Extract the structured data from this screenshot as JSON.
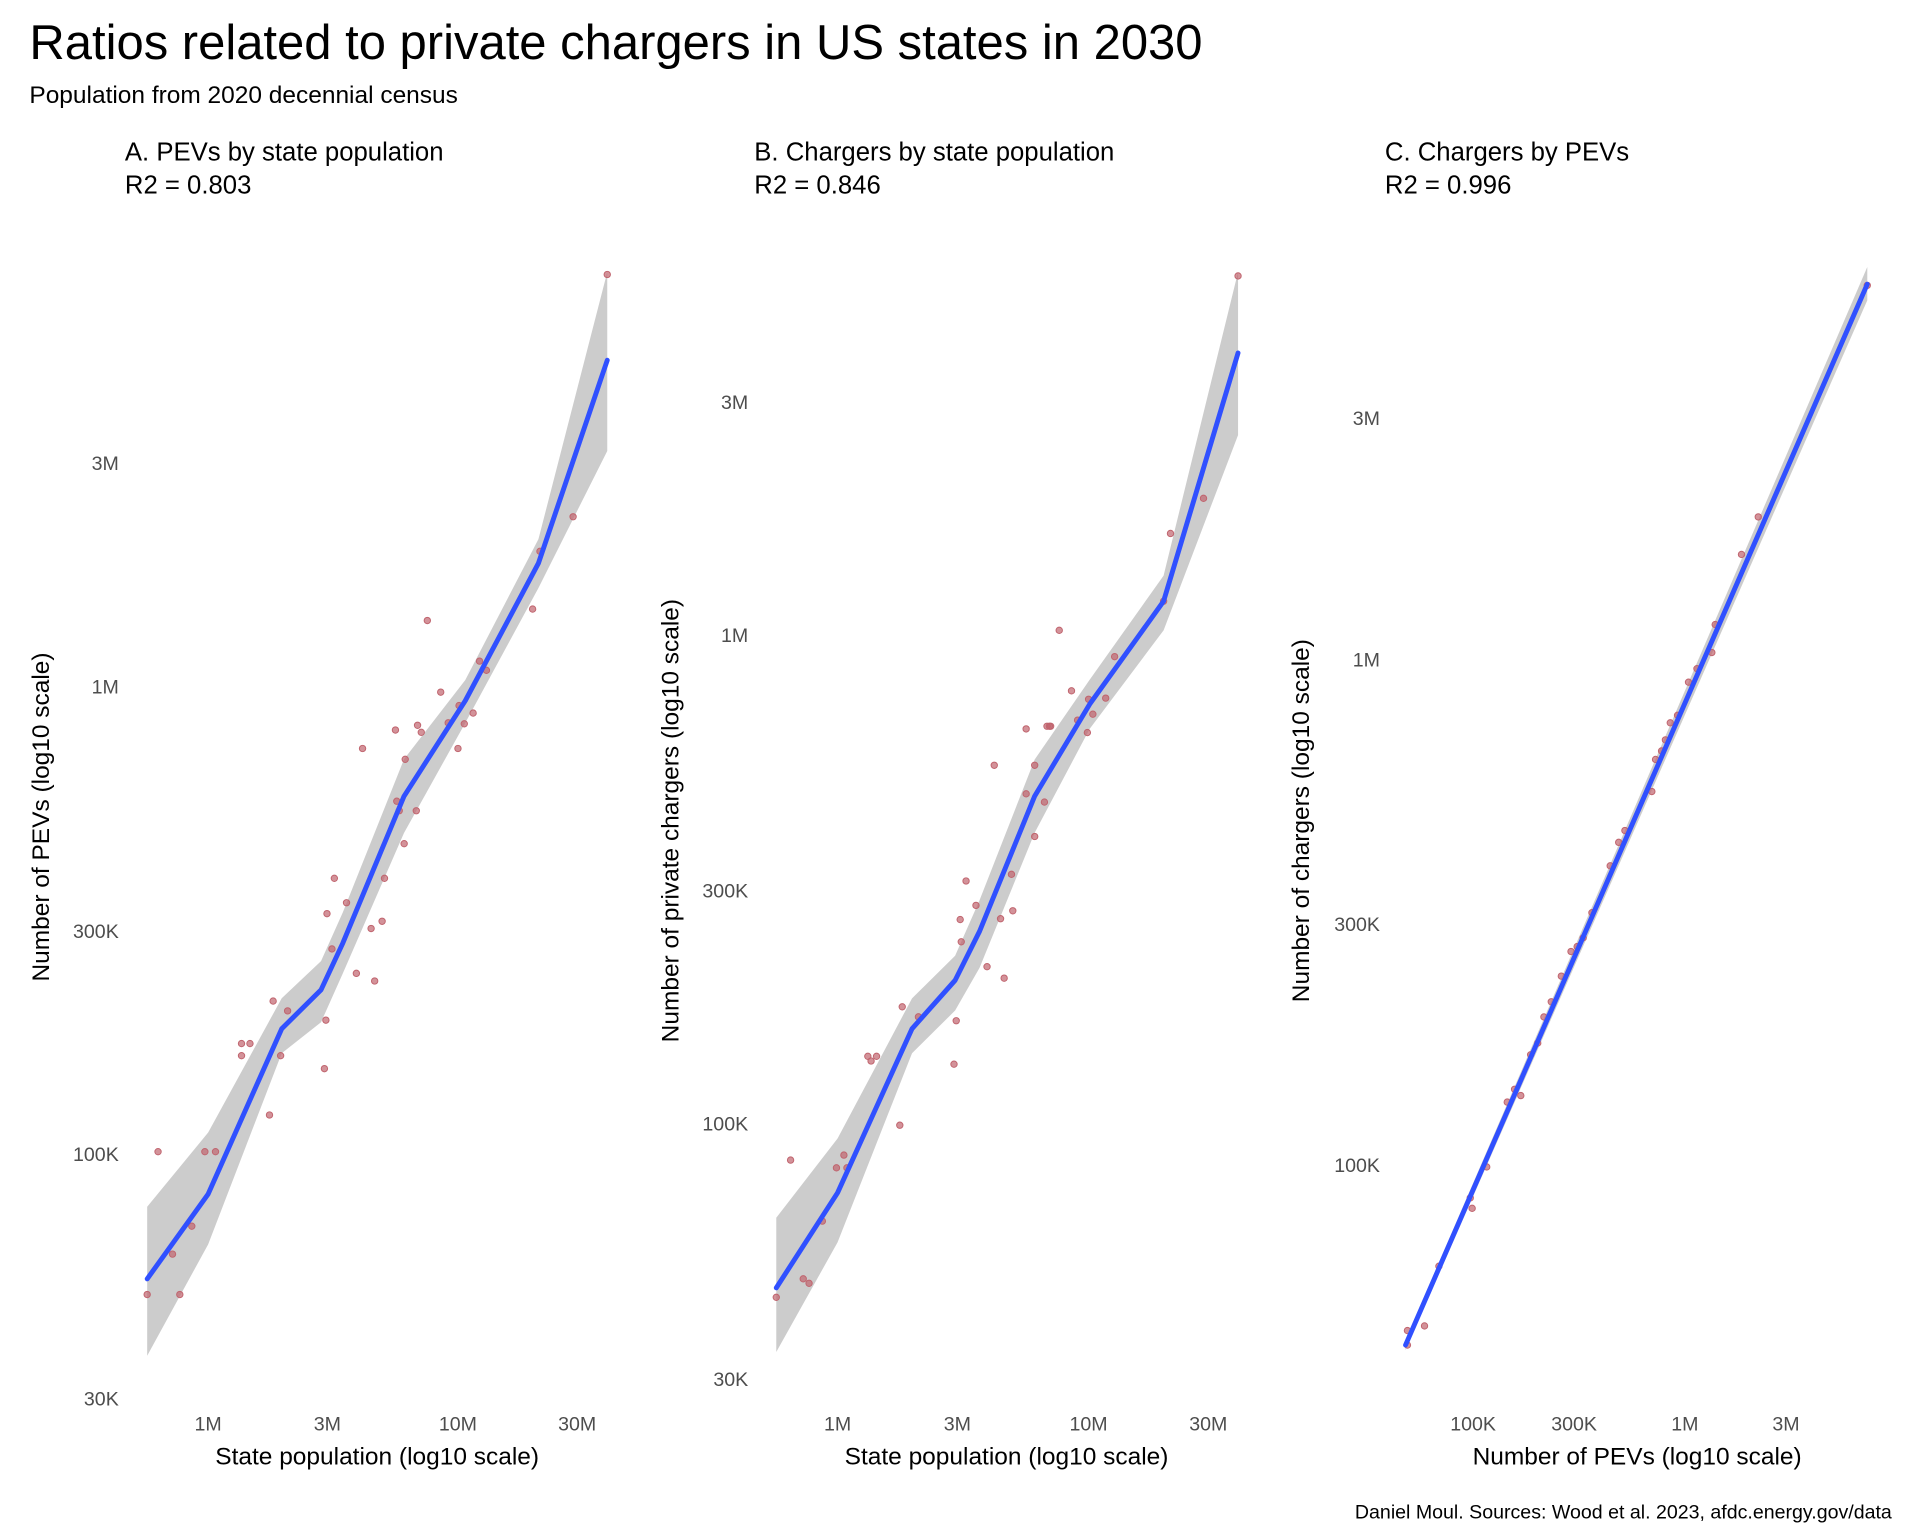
{
  "title": "Ratios related to private chargers in US states in 2030",
  "subtitle": "Population from 2020 decennial census",
  "caption": "Daniel Moul. Sources: Wood et al. 2023, afdc.energy.gov/data",
  "colors": {
    "points": "#c0646e",
    "fit_line": "#3050ff",
    "ribbon": "#cccccc"
  },
  "chart_data": [
    {
      "type": "scatter",
      "title": "A. PEVs by state population",
      "r2": "R2 = 0.803",
      "xlabel": "State population (log10 scale)",
      "ylabel": "Number of PEVs (log10 scale)",
      "x_scale": "log10",
      "y_scale": "log10",
      "grid": false,
      "x_ticks": [
        {
          "value": 1000000,
          "label": "1M"
        },
        {
          "value": 3000000,
          "label": "3M"
        },
        {
          "value": 10000000,
          "label": "10M"
        },
        {
          "value": 30000000,
          "label": "30M"
        }
      ],
      "y_ticks": [
        {
          "value": 30000,
          "label": "30K"
        },
        {
          "value": 100000,
          "label": "100K"
        },
        {
          "value": 300000,
          "label": "300K"
        },
        {
          "value": 1000000,
          "label": "1M"
        },
        {
          "value": 3000000,
          "label": "3M"
        }
      ],
      "points": [
        [
          570000,
          50000
        ],
        [
          630000,
          101000
        ],
        [
          720000,
          61000
        ],
        [
          770000,
          50000
        ],
        [
          860000,
          70000
        ],
        [
          970000,
          101000
        ],
        [
          1070000,
          101000
        ],
        [
          1360000,
          172000
        ],
        [
          1360000,
          162000
        ],
        [
          1470000,
          172000
        ],
        [
          1760000,
          121000
        ],
        [
          1820000,
          212000
        ],
        [
          1950000,
          162000
        ],
        [
          2080000,
          202000
        ],
        [
          2920000,
          152000
        ],
        [
          2960000,
          193000
        ],
        [
          2990000,
          326000
        ],
        [
          3130000,
          274000
        ],
        [
          3200000,
          388000
        ],
        [
          3580000,
          344000
        ],
        [
          3920000,
          243000
        ],
        [
          4150000,
          735000
        ],
        [
          4490000,
          303000
        ],
        [
          4640000,
          234000
        ],
        [
          4970000,
          314000
        ],
        [
          5080000,
          388000
        ],
        [
          5620000,
          805000
        ],
        [
          5690000,
          567000
        ],
        [
          5820000,
          541000
        ],
        [
          6090000,
          460000
        ],
        [
          6150000,
          697000
        ],
        [
          6810000,
          541000
        ],
        [
          6890000,
          824000
        ],
        [
          7130000,
          796000
        ],
        [
          7540000,
          1380000
        ],
        [
          8530000,
          970000
        ],
        [
          9140000,
          834000
        ],
        [
          10000000,
          735000
        ],
        [
          10100000,
          908000
        ],
        [
          10600000,
          830000
        ],
        [
          11500000,
          875000
        ],
        [
          12200000,
          1130000
        ],
        [
          13000000,
          1080000
        ],
        [
          19900000,
          1460000
        ],
        [
          21300000,
          1940000
        ],
        [
          28900000,
          2300000
        ],
        [
          39600000,
          7580000
        ]
      ],
      "fit": {
        "x": [
          570000,
          1000000,
          1970000,
          2830000,
          3460000,
          6080000,
          10700000,
          21000000,
          39600000
        ],
        "y": [
          54000,
          82000,
          185000,
          224000,
          282000,
          581000,
          930000,
          1830000,
          4970000
        ],
        "upper": [
          77000,
          111000,
          215000,
          258000,
          328000,
          697000,
          1030000,
          2060000,
          7670000
        ],
        "lower": [
          37000,
          64000,
          164000,
          191000,
          243000,
          485000,
          834000,
          1620000,
          3180000
        ]
      }
    },
    {
      "type": "scatter",
      "title": "B. Chargers by state population",
      "r2": "R2 = 0.846",
      "xlabel": "State population (log10 scale)",
      "ylabel": "Number of private chargers (log10 scale)",
      "x_scale": "log10",
      "y_scale": "log10",
      "grid": false,
      "x_ticks": [
        {
          "value": 1000000,
          "label": "1M"
        },
        {
          "value": 3000000,
          "label": "3M"
        },
        {
          "value": 10000000,
          "label": "10M"
        },
        {
          "value": 30000000,
          "label": "30M"
        }
      ],
      "y_ticks": [
        {
          "value": 30000,
          "label": "30K"
        },
        {
          "value": 100000,
          "label": "100K"
        },
        {
          "value": 300000,
          "label": "300K"
        },
        {
          "value": 1000000,
          "label": "1M"
        },
        {
          "value": 3000000,
          "label": "3M"
        }
      ],
      "points": [
        [
          570000,
          44000
        ],
        [
          650000,
          84000
        ],
        [
          730000,
          48000
        ],
        [
          770000,
          47000
        ],
        [
          870000,
          63000
        ],
        [
          990000,
          81000
        ],
        [
          1060000,
          86000
        ],
        [
          1090000,
          81000
        ],
        [
          1320000,
          137000
        ],
        [
          1360000,
          134000
        ],
        [
          1430000,
          137000
        ],
        [
          1770000,
          99000
        ],
        [
          1810000,
          173000
        ],
        [
          2100000,
          165000
        ],
        [
          2910000,
          132000
        ],
        [
          2970000,
          162000
        ],
        [
          3080000,
          261000
        ],
        [
          3110000,
          235000
        ],
        [
          3250000,
          313000
        ],
        [
          3560000,
          279000
        ],
        [
          3940000,
          209000
        ],
        [
          4210000,
          540000
        ],
        [
          4460000,
          262000
        ],
        [
          4610000,
          198000
        ],
        [
          4930000,
          323000
        ],
        [
          4990000,
          272000
        ],
        [
          5640000,
          641000
        ],
        [
          5640000,
          472000
        ],
        [
          6100000,
          540000
        ],
        [
          6100000,
          386000
        ],
        [
          6670000,
          454000
        ],
        [
          6830000,
          649000
        ],
        [
          6980000,
          649000
        ],
        [
          7060000,
          649000
        ],
        [
          7640000,
          1020000
        ],
        [
          8550000,
          767000
        ],
        [
          9040000,
          668000
        ],
        [
          9890000,
          630000
        ],
        [
          10000000,
          737000
        ],
        [
          10400000,
          687000
        ],
        [
          11700000,
          741000
        ],
        [
          12700000,
          901000
        ],
        [
          19900000,
          1170000
        ],
        [
          21200000,
          1610000
        ],
        [
          28700000,
          1900000
        ],
        [
          39400000,
          5420000
        ]
      ],
      "fit": {
        "x": [
          570000,
          1000000,
          1980000,
          2940000,
          3680000,
          6100000,
          10100000,
          19900000,
          39400000
        ],
        "y": [
          46000,
          72000,
          156000,
          196000,
          247000,
          467000,
          720000,
          1170000,
          3770000
        ],
        "upper": [
          64000,
          93000,
          180000,
          220000,
          286000,
          555000,
          808000,
          1320000,
          5520000
        ],
        "lower": [
          34000,
          57000,
          139000,
          170000,
          208000,
          393000,
          641000,
          1020000,
          2560000
        ]
      }
    },
    {
      "type": "scatter",
      "title": "C. Chargers by PEVs",
      "r2": "R2 = 0.996",
      "xlabel": "Number of PEVs (log10 scale)",
      "ylabel": "Number of chargers (log10 scale)",
      "x_scale": "log10",
      "y_scale": "log10",
      "grid": false,
      "x_ticks": [
        {
          "value": 100000,
          "label": "100K"
        },
        {
          "value": 300000,
          "label": "300K"
        },
        {
          "value": 1000000,
          "label": "1M"
        },
        {
          "value": 3000000,
          "label": "3M"
        }
      ],
      "y_ticks": [
        {
          "value": 100000,
          "label": "100K"
        },
        {
          "value": 300000,
          "label": "300K"
        },
        {
          "value": 1000000,
          "label": "1M"
        },
        {
          "value": 3000000,
          "label": "3M"
        }
      ],
      "points": [
        [
          49000,
          44000
        ],
        [
          49000,
          47000
        ],
        [
          59000,
          48000
        ],
        [
          69000,
          63000
        ],
        [
          97000,
          86000
        ],
        [
          99000,
          82000
        ],
        [
          116000,
          99000
        ],
        [
          145000,
          133000
        ],
        [
          157000,
          141000
        ],
        [
          168000,
          137000
        ],
        [
          187000,
          165000
        ],
        [
          202000,
          174000
        ],
        [
          216000,
          196000
        ],
        [
          234000,
          210000
        ],
        [
          261000,
          236000
        ],
        [
          290000,
          264000
        ],
        [
          310000,
          270000
        ],
        [
          331000,
          281000
        ],
        [
          364000,
          315000
        ],
        [
          444000,
          390000
        ],
        [
          487000,
          434000
        ],
        [
          521000,
          458000
        ],
        [
          698000,
          547000
        ],
        [
          727000,
          633000
        ],
        [
          776000,
          658000
        ],
        [
          809000,
          692000
        ],
        [
          853000,
          748000
        ],
        [
          923000,
          774000
        ],
        [
          1040000,
          900000
        ],
        [
          1140000,
          957000
        ],
        [
          1340000,
          1030000
        ],
        [
          1390000,
          1170000
        ],
        [
          1850000,
          1610000
        ],
        [
          2220000,
          1910000
        ],
        [
          7260000,
          5480000
        ]
      ],
      "fit": {
        "x": [
          48000,
          7260000
        ],
        "y": [
          44000,
          5510000
        ],
        "upper": [
          45000,
          5960000
        ],
        "lower": [
          43000,
          5120000
        ]
      }
    }
  ]
}
